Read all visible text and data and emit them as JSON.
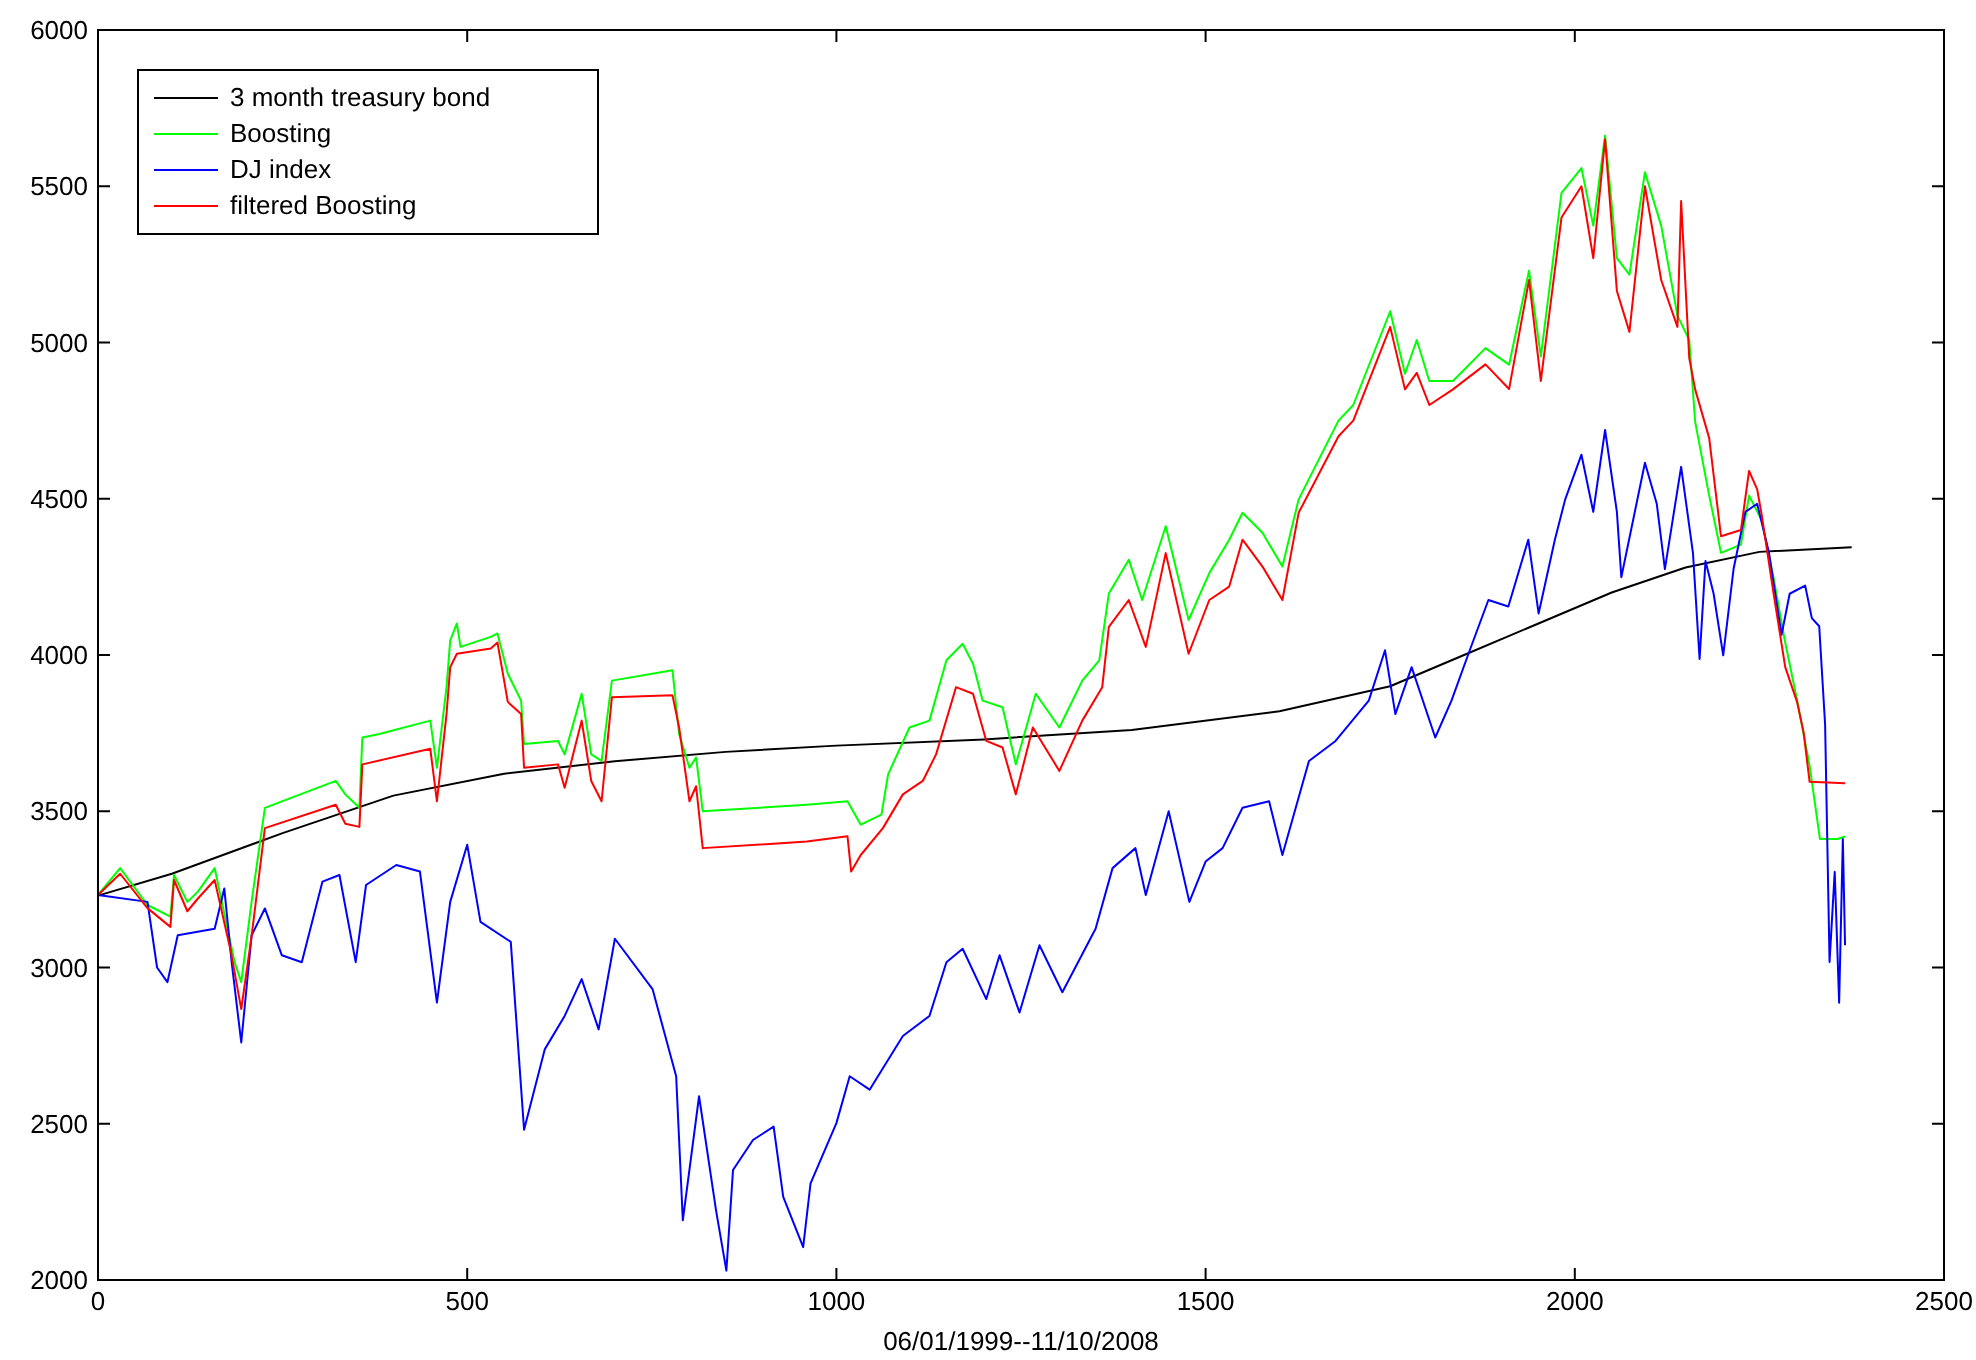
{
  "chart_data": {
    "type": "line",
    "xlabel": "06/01/1999--11/10/2008",
    "xlim": [
      0,
      2500
    ],
    "ylim": [
      2000,
      6000
    ],
    "xticks": [
      0,
      500,
      1000,
      1500,
      2000,
      2500
    ],
    "yticks": [
      2000,
      2500,
      3000,
      3500,
      4000,
      4500,
      5000,
      5500,
      6000
    ],
    "grid": false,
    "legend": "top left",
    "marker": "none",
    "line_style": "solid",
    "series": [
      {
        "name": "3 month treasury bond",
        "color": "#000000",
        "x": [
          0,
          100,
          250,
          400,
          550,
          700,
          850,
          1000,
          1200,
          1400,
          1600,
          1750,
          1850,
          1950,
          2050,
          2150,
          2250,
          2375
        ],
        "values": [
          3230,
          3300,
          3430,
          3550,
          3620,
          3660,
          3690,
          3710,
          3730,
          3760,
          3820,
          3900,
          4000,
          4100,
          4200,
          4280,
          4330,
          4345
        ]
      },
      {
        "name": "Boosting",
        "color": "#00ff00",
        "x": [
          0,
          30,
          67,
          98,
          103,
          121,
          135,
          158,
          185,
          194,
          208,
          226,
          322,
          335,
          354,
          358,
          381,
          450,
          459,
          472,
          477,
          486,
          491,
          532,
          541,
          555,
          573,
          577,
          623,
          632,
          655,
          668,
          682,
          696,
          778,
          787,
          801,
          810,
          819,
          960,
          1015,
          1033,
          1061,
          1070,
          1099,
          1126,
          1149,
          1171,
          1185,
          1198,
          1225,
          1243,
          1270,
          1302,
          1333,
          1356,
          1369,
          1396,
          1414,
          1446,
          1477,
          1505,
          1532,
          1550,
          1577,
          1604,
          1626,
          1680,
          1700,
          1750,
          1770,
          1786,
          1803,
          1835,
          1879,
          1911,
          1938,
          1954,
          1982,
          2009,
          2025,
          2041,
          2057,
          2074,
          2095,
          2117,
          2139,
          2155,
          2163,
          2182,
          2198,
          2225,
          2236,
          2253,
          2269,
          2285,
          2301,
          2318,
          2332,
          2356,
          2366
        ],
        "values": [
          3232,
          3318,
          3200,
          3163,
          3296,
          3210,
          3242,
          3318,
          3017,
          2953,
          3210,
          3511,
          3597,
          3554,
          3511,
          3736,
          3747,
          3790,
          3639,
          3897,
          4047,
          4101,
          4026,
          4058,
          4069,
          3940,
          3854,
          3715,
          3725,
          3682,
          3876,
          3682,
          3661,
          3918,
          3951,
          3747,
          3639,
          3672,
          3500,
          3521,
          3532,
          3457,
          3489,
          3618,
          3768,
          3790,
          3983,
          4036,
          3972,
          3854,
          3833,
          3650,
          3876,
          3768,
          3918,
          3983,
          4197,
          4305,
          4176,
          4412,
          4112,
          4262,
          4369,
          4455,
          4391,
          4283,
          4498,
          4750,
          4800,
          5100,
          4900,
          5008,
          4877,
          4877,
          4982,
          4929,
          5230,
          4955,
          5479,
          5558,
          5374,
          5662,
          5270,
          5217,
          5545,
          5374,
          5086,
          5008,
          4746,
          4510,
          4327,
          4353,
          4510,
          4432,
          4249,
          4039,
          3856,
          3646,
          3411,
          3411,
          3419
        ]
      },
      {
        "name": "DJ index",
        "color": "#0000ff",
        "x": [
          0,
          67,
          80,
          94,
          108,
          158,
          171,
          181,
          194,
          208,
          226,
          249,
          276,
          304,
          327,
          349,
          363,
          404,
          436,
          459,
          477,
          500,
          518,
          559,
          577,
          605,
          632,
          655,
          678,
          700,
          751,
          783,
          792,
          814,
          837,
          851,
          860,
          887,
          915,
          928,
          955,
          965,
          1000,
          1018,
          1045,
          1090,
          1126,
          1149,
          1171,
          1203,
          1221,
          1248,
          1275,
          1306,
          1351,
          1374,
          1405,
          1419,
          1450,
          1478,
          1500,
          1523,
          1550,
          1586,
          1604,
          1640,
          1676,
          1721,
          1743,
          1757,
          1779,
          1811,
          1833,
          1856,
          1883,
          1910,
          1937,
          1951,
          1973,
          1987,
          2009,
          2025,
          2041,
          2057,
          2063,
          2079,
          2095,
          2111,
          2122,
          2144,
          2160,
          2169,
          2177,
          2188,
          2201,
          2215,
          2231,
          2247,
          2263,
          2280,
          2291,
          2312,
          2321,
          2331,
          2339,
          2345,
          2352,
          2358,
          2363,
          2366
        ],
        "values": [
          3232,
          3210,
          3000,
          2953,
          3103,
          3124,
          3253,
          3017,
          2760,
          3103,
          3189,
          3039,
          3017,
          3275,
          3296,
          3017,
          3264,
          3328,
          3307,
          2888,
          3210,
          3393,
          3146,
          3082,
          2481,
          2738,
          2845,
          2963,
          2802,
          3092,
          2931,
          2652,
          2191,
          2588,
          2223,
          2030,
          2352,
          2448,
          2491,
          2266,
          2105,
          2309,
          2502,
          2652,
          2609,
          2781,
          2845,
          3017,
          3060,
          2899,
          3039,
          2856,
          3071,
          2921,
          3124,
          3318,
          3382,
          3232,
          3500,
          3210,
          3339,
          3382,
          3511,
          3532,
          3360,
          3661,
          3725,
          3854,
          4015,
          3811,
          3961,
          3736,
          3854,
          4004,
          4176,
          4155,
          4369,
          4133,
          4369,
          4498,
          4641,
          4458,
          4720,
          4458,
          4249,
          4432,
          4615,
          4484,
          4275,
          4602,
          4327,
          3987,
          4301,
          4196,
          3999,
          4275,
          4458,
          4484,
          4327,
          4065,
          4196,
          4222,
          4118,
          4092,
          3777,
          3018,
          3306,
          2887,
          3411,
          3071
        ]
      },
      {
        "name": "filtered Boosting",
        "color": "#ff0000",
        "x": [
          0,
          30,
          67,
          98,
          103,
          121,
          135,
          158,
          180,
          194,
          208,
          226,
          322,
          335,
          354,
          358,
          450,
          459,
          472,
          477,
          486,
          532,
          541,
          555,
          573,
          577,
          623,
          632,
          655,
          668,
          682,
          696,
          778,
          787,
          801,
          810,
          819,
          960,
          1015,
          1020,
          1033,
          1063,
          1090,
          1117,
          1135,
          1162,
          1185,
          1203,
          1225,
          1243,
          1266,
          1302,
          1333,
          1360,
          1369,
          1396,
          1419,
          1446,
          1477,
          1505,
          1532,
          1550,
          1577,
          1604,
          1626,
          1680,
          1700,
          1750,
          1770,
          1786,
          1803,
          1835,
          1879,
          1911,
          1938,
          1954,
          1982,
          2009,
          2025,
          2041,
          2057,
          2074,
          2095,
          2117,
          2139,
          2144,
          2155,
          2163,
          2182,
          2198,
          2225,
          2236,
          2247,
          2253,
          2269,
          2285,
          2301,
          2310,
          2318,
          2366
        ],
        "values": [
          3232,
          3300,
          3190,
          3130,
          3280,
          3180,
          3220,
          3280,
          3050,
          2867,
          3100,
          3446,
          3521,
          3460,
          3450,
          3650,
          3700,
          3532,
          3811,
          3961,
          4004,
          4021,
          4040,
          3850,
          3811,
          3639,
          3650,
          3575,
          3790,
          3597,
          3532,
          3865,
          3871,
          3768,
          3532,
          3580,
          3382,
          3403,
          3420,
          3307,
          3360,
          3446,
          3554,
          3597,
          3682,
          3897,
          3876,
          3725,
          3704,
          3554,
          3768,
          3629,
          3790,
          3897,
          4090,
          4176,
          4026,
          4326,
          4004,
          4176,
          4219,
          4369,
          4283,
          4176,
          4455,
          4700,
          4750,
          5050,
          4850,
          4903,
          4800,
          4850,
          4930,
          4851,
          5200,
          4877,
          5400,
          5500,
          5270,
          5650,
          5165,
          5034,
          5500,
          5200,
          5050,
          5453,
          4950,
          4850,
          4694,
          4380,
          4400,
          4589,
          4530,
          4450,
          4200,
          3961,
          3850,
          3751,
          3594,
          3590
        ]
      }
    ]
  }
}
